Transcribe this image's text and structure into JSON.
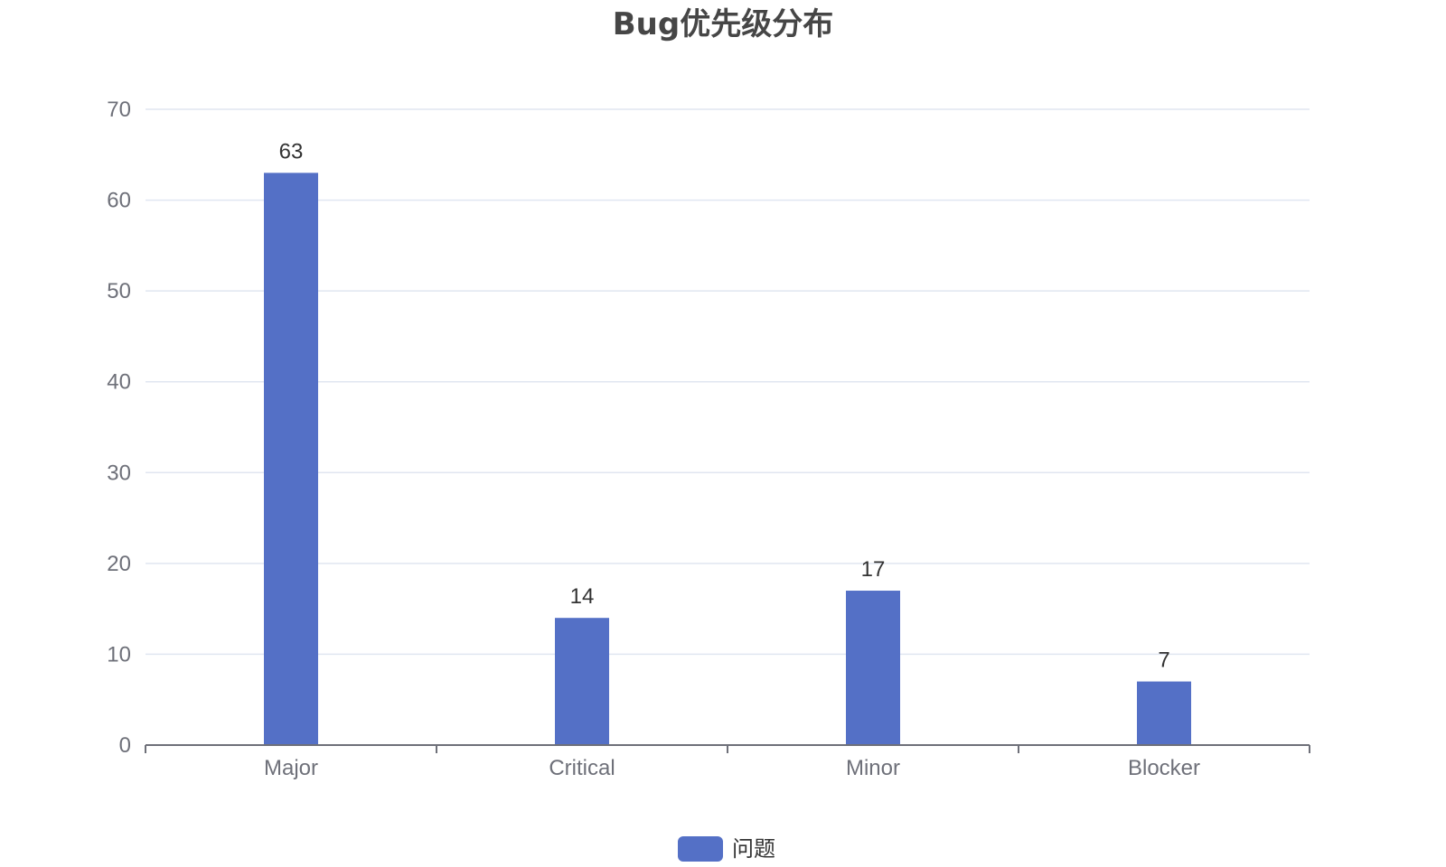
{
  "chart_data": {
    "type": "bar",
    "title": "Bug优先级分布",
    "categories": [
      "Major",
      "Critical",
      "Minor",
      "Blocker"
    ],
    "series": [
      {
        "name": "问题",
        "values": [
          63,
          14,
          17,
          7
        ],
        "color": "#5470c6"
      }
    ],
    "ylim": [
      0,
      70
    ],
    "yticks": [
      0,
      10,
      20,
      30,
      40,
      50,
      60,
      70
    ],
    "grid": true,
    "legend_position": "bottom-center"
  }
}
